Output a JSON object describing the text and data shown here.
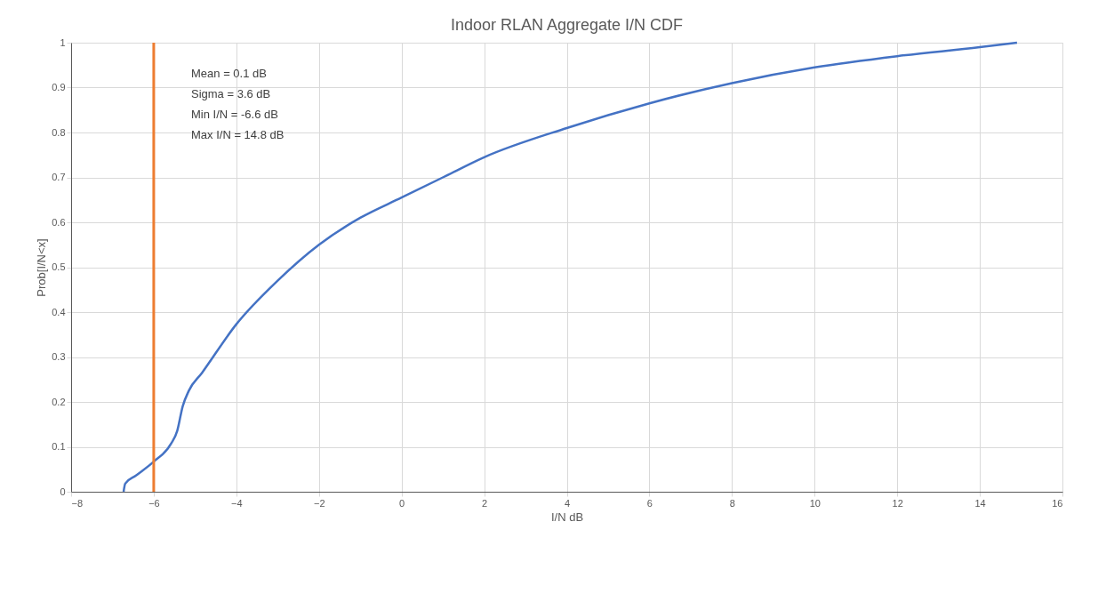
{
  "chart_data": {
    "type": "line",
    "title": "Indoor RLAN Aggregate I/N CDF",
    "xlabel": "I/N dB",
    "ylabel": "Prob[I/N<x]",
    "xlim": [
      -8,
      16
    ],
    "xticks": [
      -8,
      -6,
      -4,
      -2,
      0,
      2,
      4,
      6,
      8,
      10,
      12,
      14,
      16
    ],
    "ylim": [
      0,
      1
    ],
    "yticks": [
      0,
      0.1,
      0.2,
      0.3,
      0.4,
      0.5,
      0.6,
      0.7,
      0.8,
      0.9,
      1
    ],
    "grid": true,
    "marker": "none",
    "line_style": "solid",
    "series": [
      {
        "color": "#4472c4",
        "x": [
          -6.73,
          -6.69,
          -6.43,
          -6.0,
          -5.58,
          -5.43,
          -5.3,
          -5.15,
          -4.83,
          -4.0,
          -3.0,
          -2.0,
          -1.0,
          0,
          1,
          2,
          4,
          6,
          8,
          10,
          12,
          14,
          14.9
        ],
        "values": [
          0,
          0.018,
          0.036,
          0.067,
          0.107,
          0.136,
          0.19,
          0.225,
          0.265,
          0.373,
          0.47,
          0.55,
          0.61,
          0.655,
          0.7,
          0.745,
          0.81,
          0.865,
          0.91,
          0.945,
          0.97,
          0.99,
          1.0
        ]
      }
    ],
    "ref_lines": [
      {
        "axis": "x",
        "value": -6,
        "color": "#ed7d31",
        "line_style": "solid"
      }
    ],
    "annotations": [
      "Mean = 0.1 dB",
      "Sigma = 3.6 dB",
      "Min I/N = -6.6 dB",
      "Max I/N = 14.8 dB"
    ]
  }
}
